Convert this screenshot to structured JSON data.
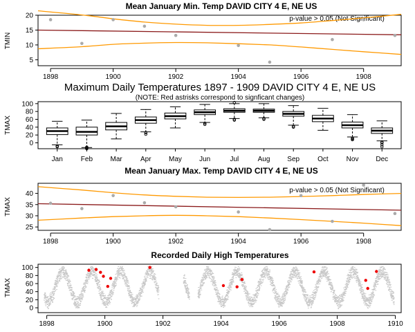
{
  "colors": {
    "trend": "#8b1a1a",
    "ci": "#ff9900",
    "point": "#aaaaaa",
    "scatter": "#c8c8c8",
    "extreme": "#ee0000",
    "box_fill": "#ffffff",
    "axis": "#000000"
  },
  "chart_data": [
    {
      "id": "tmin_jan",
      "type": "scatter",
      "title": "Mean January Min. Temp DAVID CITY 4 E, NE US",
      "ylabel": "TMIN",
      "xlabel": "",
      "xlim": [
        1897.6,
        1909.2
      ],
      "ylim": [
        3,
        20
      ],
      "x_ticks": [
        1898,
        1900,
        1902,
        1904,
        1906,
        1908
      ],
      "y_ticks": [
        5,
        10,
        15,
        20
      ],
      "annotation": "p-value > 0.05 (Not Significant)",
      "x": [
        1898,
        1899,
        1900,
        1901,
        1902,
        1904,
        1905,
        1907,
        1908,
        1909
      ],
      "y": [
        18.5,
        10.5,
        18.5,
        16.3,
        13.2,
        9.8,
        4.2,
        11.8,
        18.5,
        13.2
      ],
      "trend": {
        "x": [
          1897.6,
          1909.2
        ],
        "y": [
          15.0,
          13.4
        ]
      },
      "ci_upper": {
        "x": [
          1897.6,
          1899,
          1900,
          1901,
          1902,
          1903,
          1904,
          1905,
          1906,
          1907,
          1908,
          1909.2
        ],
        "y": [
          21.5,
          20.1,
          18.8,
          17.7,
          17.0,
          16.6,
          16.6,
          16.9,
          17.4,
          18.2,
          19.1,
          20.3
        ]
      },
      "ci_lower": {
        "x": [
          1897.6,
          1899,
          1900,
          1901,
          1902,
          1903,
          1904,
          1905,
          1906,
          1907,
          1908,
          1909.2
        ],
        "y": [
          8.7,
          9.4,
          10.2,
          10.6,
          10.8,
          10.7,
          10.4,
          10.0,
          9.3,
          8.5,
          7.7,
          6.8
        ]
      }
    },
    {
      "id": "tmax_monthly",
      "type": "box",
      "title": "Maximum Daily Temperatures 1897 - 1909 DAVID CITY 4 E, NE US",
      "subtitle": "(NOTE: Red astrisks correspond to signficant changes)",
      "ylabel": "TMAX",
      "ylim": [
        -15,
        105
      ],
      "y_ticks": [
        0,
        20,
        40,
        60,
        80,
        100
      ],
      "categories": [
        "Jan",
        "Feb",
        "Mar",
        "Apr",
        "May",
        "Jun",
        "Jul",
        "Aug",
        "Sep",
        "Oct",
        "Nov",
        "Dec"
      ],
      "boxes": [
        {
          "min": -5,
          "q1": 21,
          "median": 30,
          "q3": 38,
          "max": 55,
          "outliers": [
            -10,
            -8
          ]
        },
        {
          "min": -12,
          "q1": 20,
          "median": 28,
          "q3": 40,
          "max": 58,
          "outliers": [
            -15,
            -13,
            -11
          ]
        },
        {
          "min": 10,
          "q1": 33,
          "median": 42,
          "q3": 52,
          "max": 75,
          "outliers": []
        },
        {
          "min": 28,
          "q1": 50,
          "median": 58,
          "q3": 66,
          "max": 85,
          "outliers": [
            22,
            26
          ]
        },
        {
          "min": 38,
          "q1": 61,
          "median": 68,
          "q3": 76,
          "max": 92,
          "outliers": []
        },
        {
          "min": 52,
          "q1": 72,
          "median": 78,
          "q3": 84,
          "max": 98,
          "outliers": [
            47,
            50
          ]
        },
        {
          "min": 62,
          "q1": 78,
          "median": 82,
          "q3": 87,
          "max": 100,
          "outliers": [
            58,
            60,
            103
          ]
        },
        {
          "min": 64,
          "q1": 78,
          "median": 82,
          "q3": 86,
          "max": 100,
          "outliers": [
            60,
            62
          ]
        },
        {
          "min": 45,
          "q1": 68,
          "median": 74,
          "q3": 80,
          "max": 95,
          "outliers": [
            40,
            42
          ]
        },
        {
          "min": 32,
          "q1": 54,
          "median": 62,
          "q3": 70,
          "max": 88,
          "outliers": []
        },
        {
          "min": 15,
          "q1": 38,
          "median": 45,
          "q3": 53,
          "max": 72,
          "outliers": [
            8,
            10,
            12
          ]
        },
        {
          "min": 5,
          "q1": 24,
          "median": 31,
          "q3": 38,
          "max": 56,
          "outliers": [
            -10,
            -5,
            0,
            2
          ]
        }
      ]
    },
    {
      "id": "tmax_jan",
      "type": "scatter",
      "title": "Mean January Max. Temp DAVID CITY 4 E, NE US",
      "ylabel": "TMAX",
      "xlabel": "",
      "xlim": [
        1897.6,
        1909.2
      ],
      "ylim": [
        23.5,
        44.5
      ],
      "x_ticks": [
        1898,
        1900,
        1902,
        1904,
        1906,
        1908
      ],
      "y_ticks": [
        25,
        30,
        35,
        40
      ],
      "annotation": "p-value > 0.05 (Not Significant)",
      "x": [
        1898,
        1899,
        1900,
        1901,
        1902,
        1904,
        1905,
        1906,
        1907,
        1908,
        1909
      ],
      "y": [
        35.6,
        33.2,
        39.0,
        35.8,
        34.0,
        31.7,
        23.8,
        39.0,
        27.5,
        43.7,
        31.0
      ],
      "trend": {
        "x": [
          1897.6,
          1909.2
        ],
        "y": [
          35.4,
          32.5
        ]
      },
      "ci_upper": {
        "x": [
          1897.6,
          1899,
          1900,
          1901,
          1902,
          1903,
          1904,
          1905,
          1906,
          1907,
          1908,
          1909.2
        ],
        "y": [
          43.0,
          41.5,
          40.3,
          39.3,
          38.7,
          38.3,
          38.2,
          38.3,
          38.6,
          39.0,
          39.5,
          40.0
        ]
      },
      "ci_lower": {
        "x": [
          1897.6,
          1899,
          1900,
          1901,
          1902,
          1903,
          1904,
          1905,
          1906,
          1907,
          1908,
          1909.2
        ],
        "y": [
          28.0,
          29.0,
          29.6,
          30.0,
          30.2,
          30.0,
          29.6,
          29.0,
          28.3,
          27.5,
          26.7,
          25.6
        ]
      }
    },
    {
      "id": "daily_high",
      "type": "scatter",
      "title": "Recorded Daily High Temperatures",
      "ylabel": "TMAX",
      "xlabel": "",
      "xlim": [
        1897.7,
        1910.2
      ],
      "ylim": [
        -12,
        108
      ],
      "x_ticks": [
        1898,
        1900,
        1902,
        1904,
        1906,
        1908,
        1910
      ],
      "y_ticks": [
        0,
        20,
        40,
        60,
        80,
        100
      ],
      "series": [
        {
          "description": "seasonal cycle: mean 52 + 38*sin, noise ±12",
          "segments": [
            [
              1897.9,
              1901.85
            ],
            [
              1902.7,
              1902.9
            ],
            [
              1903.2,
              1909.95
            ]
          ],
          "samples_per_year": 365
        }
      ],
      "extremes": {
        "x": [
          1899.45,
          1899.7,
          1899.85,
          1899.95,
          1900.1,
          1900.2,
          1901.55,
          1904.08,
          1904.55,
          1904.72,
          1907.2,
          1908.98,
          1909.05,
          1909.35
        ],
        "y": [
          93,
          95,
          88,
          78,
          53,
          73,
          100,
          55,
          52,
          70,
          89,
          68,
          48,
          90
        ]
      }
    }
  ]
}
